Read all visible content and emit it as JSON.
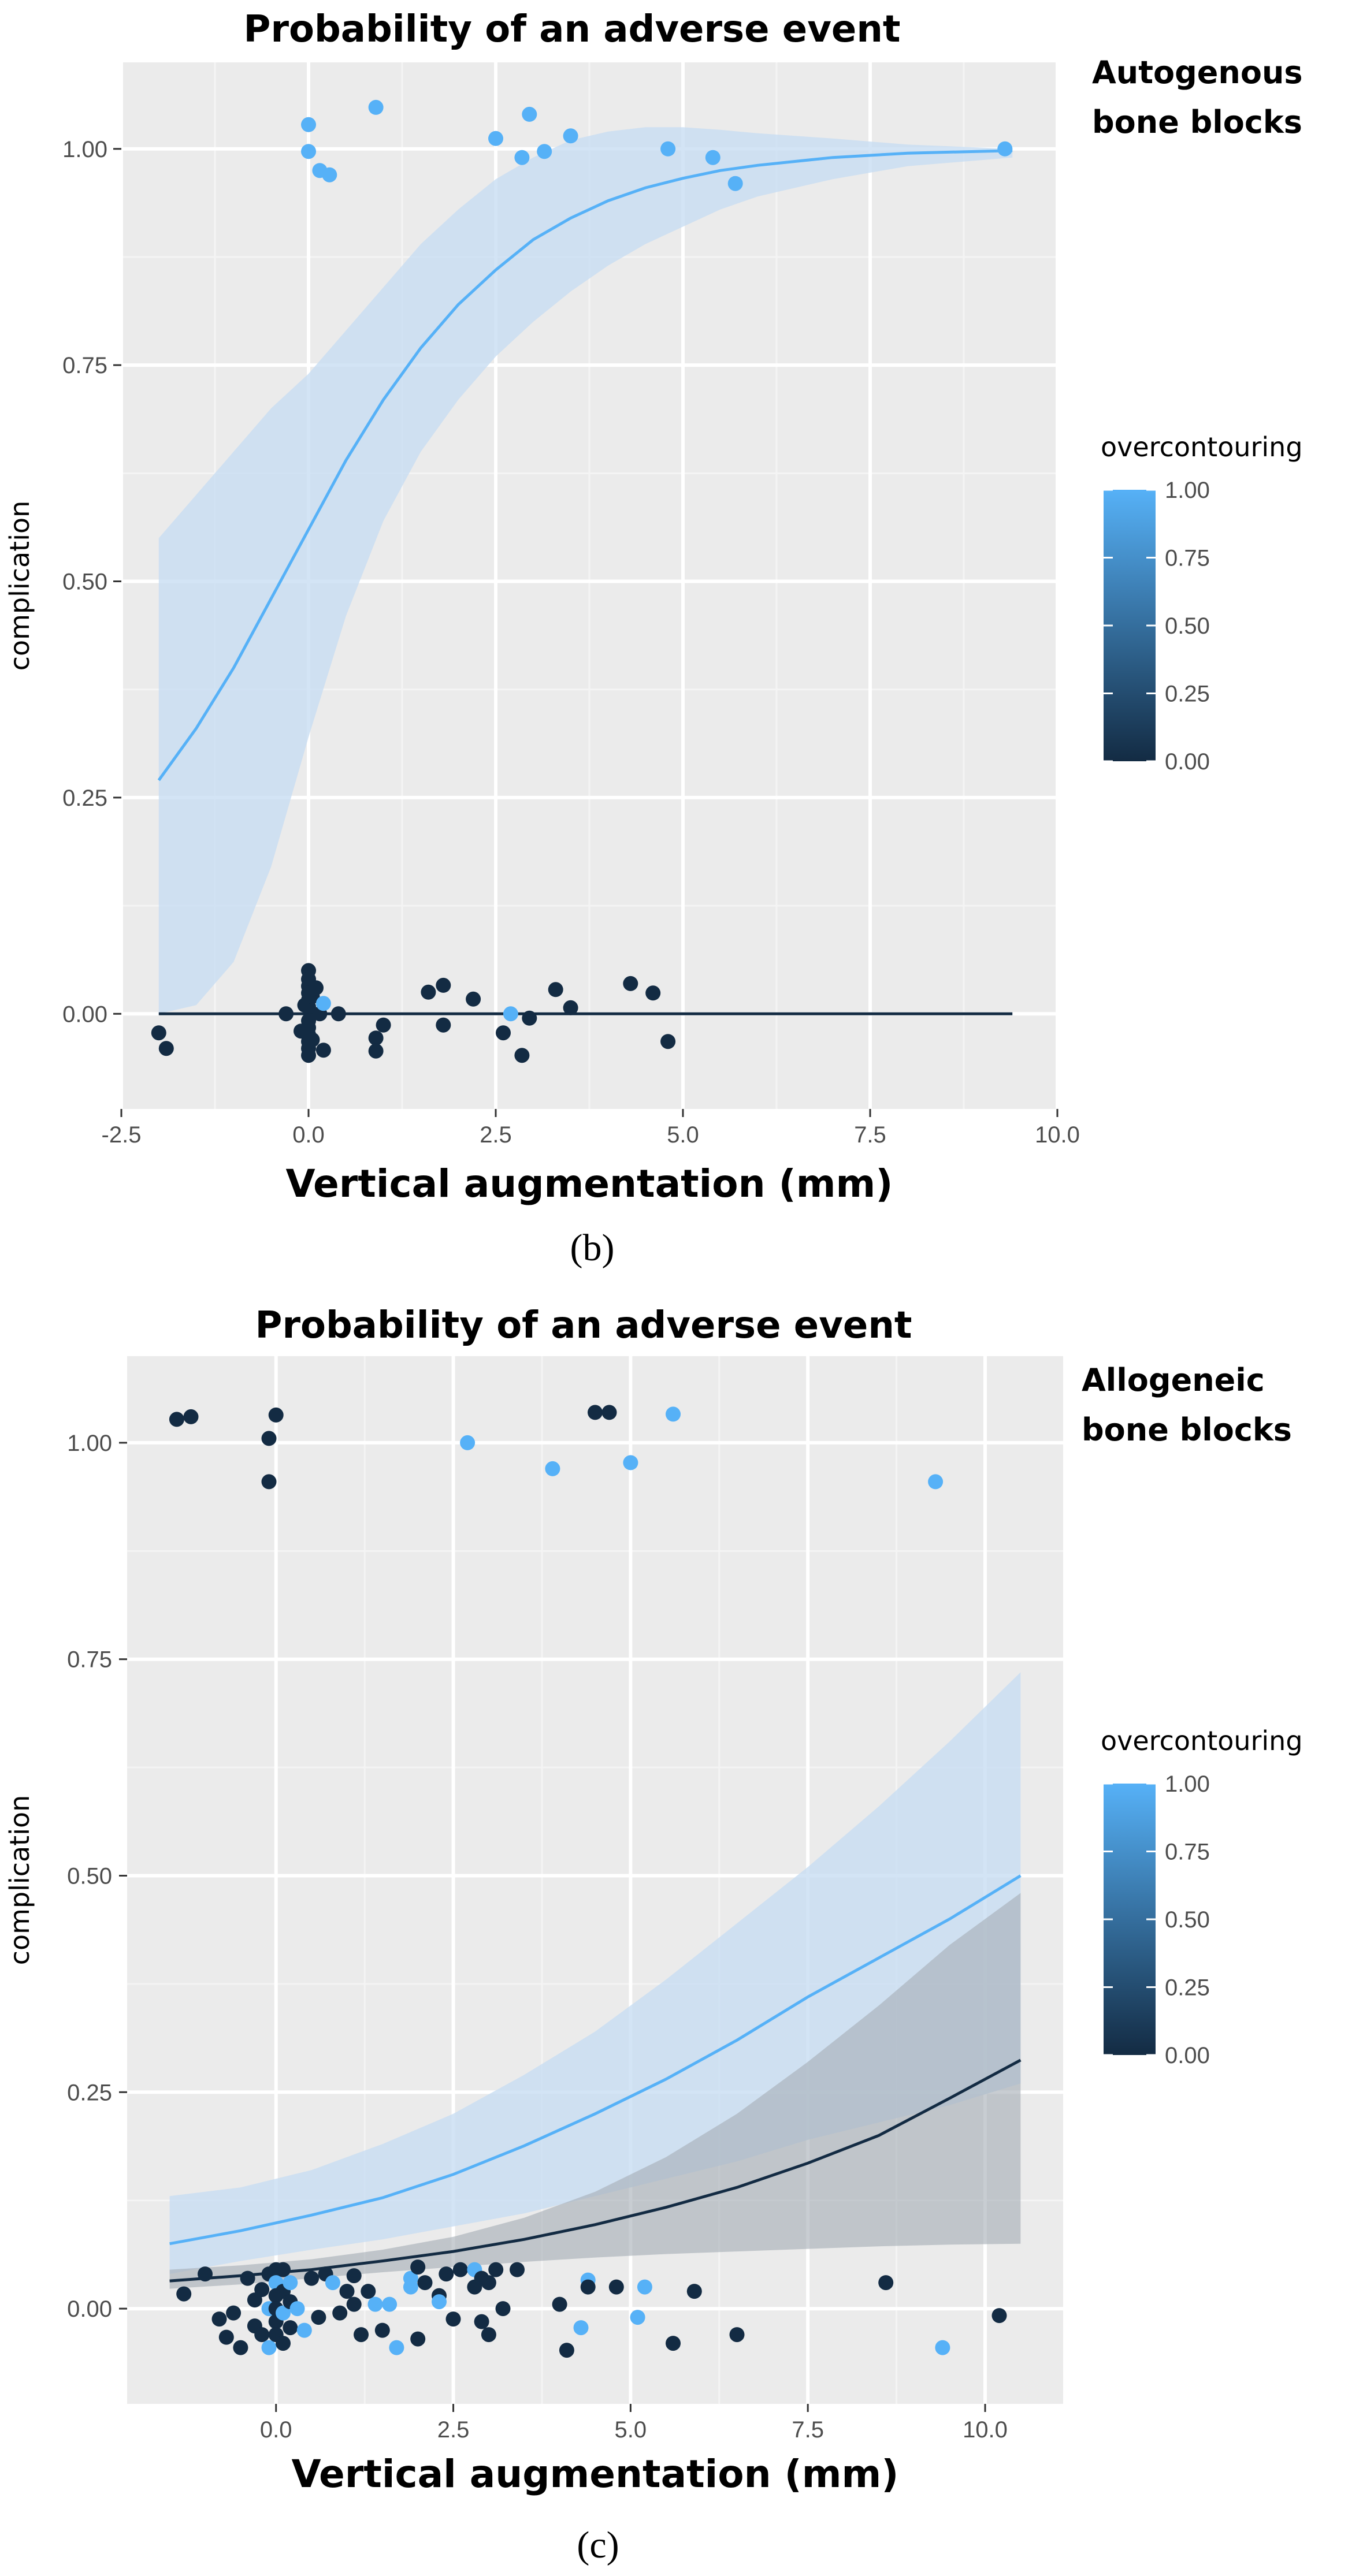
{
  "colors": {
    "panel_bg": "#ebebeb",
    "grid_major": "#ffffff",
    "grid_minor": "#f4f4f4",
    "light_blue": "#56b1f7",
    "dark_navy": "#132b43",
    "ribbon_blue": "#c6dcf2",
    "ribbon_dark": "#a7aeb6",
    "tick_text": "#4d4d4d"
  },
  "chart_data": [
    {
      "panel_label": "(b)",
      "panel_letter": "b",
      "type": "scatter",
      "title": "Probability of an adverse event",
      "xlabel": "Vertical augmentation (mm)",
      "ylabel": "complication",
      "annotation": [
        "Autogenous",
        "bone blocks"
      ],
      "xlim": [
        -2.5,
        10.0
      ],
      "ylim": [
        -0.11,
        1.1
      ],
      "xticks": [
        -2.5,
        0.0,
        2.5,
        5.0,
        7.5,
        10.0
      ],
      "xtick_labels": [
        "-2.5",
        "0.0",
        "2.5",
        "5.0",
        "7.5",
        "10.0"
      ],
      "yticks": [
        0.0,
        0.25,
        0.5,
        0.75,
        1.0
      ],
      "ytick_labels": [
        "0.00",
        "0.25",
        "0.50",
        "0.75",
        "1.00"
      ],
      "legend": {
        "title": "overcontouring",
        "position": "right",
        "labels": [
          "1.00",
          "0.75",
          "0.50",
          "0.25",
          "0.00"
        ],
        "range": [
          0,
          1
        ]
      },
      "fits": [
        {
          "name": "overcontouring = 1",
          "color_key": "light_blue",
          "ribbon_key": "ribbon_blue",
          "x": [
            -2.0,
            -1.5,
            -1.0,
            -0.5,
            0.0,
            0.5,
            1.0,
            1.5,
            2.0,
            2.5,
            3.0,
            3.5,
            4.0,
            4.5,
            5.0,
            5.5,
            6.0,
            7.0,
            8.0,
            9.4
          ],
          "y": [
            0.27,
            0.33,
            0.4,
            0.48,
            0.56,
            0.64,
            0.71,
            0.77,
            0.82,
            0.86,
            0.895,
            0.92,
            0.94,
            0.955,
            0.966,
            0.975,
            0.981,
            0.99,
            0.995,
            0.998
          ],
          "lower": [
            0.0,
            0.01,
            0.06,
            0.17,
            0.32,
            0.46,
            0.57,
            0.65,
            0.71,
            0.76,
            0.8,
            0.835,
            0.865,
            0.89,
            0.91,
            0.93,
            0.945,
            0.965,
            0.98,
            0.99
          ],
          "upper": [
            0.55,
            0.6,
            0.65,
            0.7,
            0.74,
            0.79,
            0.84,
            0.89,
            0.93,
            0.965,
            0.99,
            1.01,
            1.02,
            1.025,
            1.025,
            1.022,
            1.018,
            1.012,
            1.005,
            1.0
          ]
        },
        {
          "name": "overcontouring = 0",
          "color_key": "dark_navy",
          "ribbon_key": "",
          "x": [
            -2.0,
            9.4
          ],
          "y": [
            0.0,
            0.0
          ],
          "lower": [],
          "upper": []
        }
      ],
      "points": [
        {
          "x": 0.0,
          "y": 1.028,
          "c": 1
        },
        {
          "x": 0.0,
          "y": 0.997,
          "c": 1
        },
        {
          "x": 0.15,
          "y": 0.975,
          "c": 1
        },
        {
          "x": 0.28,
          "y": 0.97,
          "c": 1
        },
        {
          "x": 0.9,
          "y": 1.048,
          "c": 1
        },
        {
          "x": 2.5,
          "y": 1.012,
          "c": 1
        },
        {
          "x": 2.85,
          "y": 0.99,
          "c": 1
        },
        {
          "x": 2.95,
          "y": 1.04,
          "c": 1
        },
        {
          "x": 3.15,
          "y": 0.997,
          "c": 1
        },
        {
          "x": 3.5,
          "y": 1.015,
          "c": 1
        },
        {
          "x": 4.8,
          "y": 1.0,
          "c": 1
        },
        {
          "x": 5.4,
          "y": 0.99,
          "c": 1
        },
        {
          "x": 5.7,
          "y": 0.96,
          "c": 1
        },
        {
          "x": 9.3,
          "y": 1.0,
          "c": 1
        },
        {
          "x": -2.0,
          "y": -0.022,
          "c": 0
        },
        {
          "x": -1.9,
          "y": -0.04,
          "c": 0
        },
        {
          "x": -0.3,
          "y": 0.0,
          "c": 0
        },
        {
          "x": -0.1,
          "y": -0.02,
          "c": 0
        },
        {
          "x": -0.05,
          "y": 0.01,
          "c": 0
        },
        {
          "x": 0.0,
          "y": 0.05,
          "c": 0
        },
        {
          "x": 0.0,
          "y": 0.04,
          "c": 0
        },
        {
          "x": 0.0,
          "y": 0.032,
          "c": 0
        },
        {
          "x": 0.0,
          "y": 0.024,
          "c": 0
        },
        {
          "x": 0.0,
          "y": 0.016,
          "c": 0
        },
        {
          "x": 0.0,
          "y": 0.008,
          "c": 0
        },
        {
          "x": 0.0,
          "y": -0.008,
          "c": 0
        },
        {
          "x": 0.0,
          "y": -0.016,
          "c": 0
        },
        {
          "x": 0.0,
          "y": -0.024,
          "c": 0
        },
        {
          "x": 0.0,
          "y": -0.032,
          "c": 0
        },
        {
          "x": 0.0,
          "y": -0.04,
          "c": 0
        },
        {
          "x": 0.0,
          "y": -0.048,
          "c": 0
        },
        {
          "x": 0.05,
          "y": 0.02,
          "c": 0
        },
        {
          "x": 0.05,
          "y": -0.03,
          "c": 0
        },
        {
          "x": 0.1,
          "y": 0.03,
          "c": 0
        },
        {
          "x": 0.15,
          "y": 0.0,
          "c": 0
        },
        {
          "x": 0.2,
          "y": 0.012,
          "c": 1
        },
        {
          "x": 0.2,
          "y": -0.042,
          "c": 0
        },
        {
          "x": 0.4,
          "y": 0.0,
          "c": 0
        },
        {
          "x": 0.9,
          "y": -0.028,
          "c": 0
        },
        {
          "x": 0.9,
          "y": -0.043,
          "c": 0
        },
        {
          "x": 1.0,
          "y": -0.013,
          "c": 0
        },
        {
          "x": 1.6,
          "y": 0.025,
          "c": 0
        },
        {
          "x": 1.8,
          "y": 0.033,
          "c": 0
        },
        {
          "x": 1.8,
          "y": -0.013,
          "c": 0
        },
        {
          "x": 2.2,
          "y": 0.017,
          "c": 0
        },
        {
          "x": 2.6,
          "y": -0.022,
          "c": 0
        },
        {
          "x": 2.7,
          "y": 0.0,
          "c": 1
        },
        {
          "x": 2.85,
          "y": -0.048,
          "c": 0
        },
        {
          "x": 2.95,
          "y": -0.005,
          "c": 0
        },
        {
          "x": 3.3,
          "y": 0.028,
          "c": 0
        },
        {
          "x": 3.5,
          "y": 0.007,
          "c": 0
        },
        {
          "x": 4.3,
          "y": 0.035,
          "c": 0
        },
        {
          "x": 4.6,
          "y": 0.024,
          "c": 0
        },
        {
          "x": 4.8,
          "y": -0.032,
          "c": 0
        }
      ]
    },
    {
      "panel_label": "(c)",
      "panel_letter": "c",
      "type": "scatter",
      "title": "Probability of an adverse event",
      "xlabel": "Vertical augmentation (mm)",
      "ylabel": "complication",
      "annotation": [
        "Allogeneic",
        "bone blocks"
      ],
      "xlim": [
        -2.1,
        11.1
      ],
      "ylim": [
        -0.11,
        1.1
      ],
      "xticks": [
        0.0,
        2.5,
        5.0,
        7.5,
        10.0
      ],
      "xtick_labels": [
        "0.0",
        "2.5",
        "5.0",
        "7.5",
        "10.0"
      ],
      "yticks": [
        0.0,
        0.25,
        0.5,
        0.75,
        1.0
      ],
      "ytick_labels": [
        "0.00",
        "0.25",
        "0.50",
        "0.75",
        "1.00"
      ],
      "legend": {
        "title": "overcontouring",
        "position": "right",
        "labels": [
          "1.00",
          "0.75",
          "0.50",
          "0.25",
          "0.00"
        ],
        "range": [
          0,
          1
        ]
      },
      "fits": [
        {
          "name": "overcontouring = 1",
          "color_key": "light_blue",
          "ribbon_key": "ribbon_blue",
          "x": [
            -1.5,
            -0.5,
            0.5,
            1.5,
            2.5,
            3.5,
            4.5,
            5.5,
            6.5,
            7.5,
            8.5,
            9.5,
            10.5
          ],
          "y": [
            0.075,
            0.09,
            0.108,
            0.128,
            0.155,
            0.188,
            0.225,
            0.265,
            0.31,
            0.36,
            0.405,
            0.45,
            0.5
          ],
          "lower": [
            0.04,
            0.055,
            0.068,
            0.08,
            0.095,
            0.11,
            0.13,
            0.15,
            0.17,
            0.195,
            0.215,
            0.235,
            0.26
          ],
          "upper": [
            0.13,
            0.14,
            0.16,
            0.19,
            0.225,
            0.27,
            0.32,
            0.38,
            0.445,
            0.51,
            0.58,
            0.655,
            0.735
          ]
        },
        {
          "name": "overcontouring = 0",
          "color_key": "dark_navy",
          "ribbon_key": "ribbon_dark",
          "x": [
            -1.5,
            -0.5,
            0.5,
            1.5,
            2.5,
            3.5,
            4.5,
            5.5,
            6.5,
            7.5,
            8.5,
            9.5,
            10.5
          ],
          "y": [
            0.032,
            0.038,
            0.045,
            0.055,
            0.066,
            0.08,
            0.097,
            0.117,
            0.14,
            0.168,
            0.2,
            0.243,
            0.287
          ],
          "lower": [
            0.023,
            0.028,
            0.035,
            0.042,
            0.048,
            0.054,
            0.059,
            0.063,
            0.066,
            0.069,
            0.072,
            0.074,
            0.075
          ],
          "upper": [
            0.045,
            0.05,
            0.057,
            0.068,
            0.083,
            0.105,
            0.135,
            0.175,
            0.225,
            0.285,
            0.35,
            0.42,
            0.48
          ]
        }
      ],
      "points": [
        {
          "x": -1.4,
          "y": 1.027,
          "c": 0
        },
        {
          "x": -1.2,
          "y": 1.03,
          "c": 0
        },
        {
          "x": -0.1,
          "y": 1.005,
          "c": 0
        },
        {
          "x": -0.1,
          "y": 0.955,
          "c": 0
        },
        {
          "x": 0.0,
          "y": 1.032,
          "c": 0
        },
        {
          "x": 2.7,
          "y": 1.0,
          "c": 1
        },
        {
          "x": 3.9,
          "y": 0.97,
          "c": 1
        },
        {
          "x": 4.5,
          "y": 1.035,
          "c": 0
        },
        {
          "x": 4.7,
          "y": 1.035,
          "c": 0
        },
        {
          "x": 5.0,
          "y": 0.977,
          "c": 1
        },
        {
          "x": 5.6,
          "y": 1.033,
          "c": 1
        },
        {
          "x": 9.3,
          "y": 0.955,
          "c": 1
        },
        {
          "x": -1.3,
          "y": 0.017,
          "c": 0
        },
        {
          "x": -1.0,
          "y": 0.04,
          "c": 0
        },
        {
          "x": -0.8,
          "y": -0.012,
          "c": 0
        },
        {
          "x": -0.7,
          "y": -0.033,
          "c": 0
        },
        {
          "x": -0.6,
          "y": -0.005,
          "c": 0
        },
        {
          "x": -0.5,
          "y": -0.045,
          "c": 0
        },
        {
          "x": -0.4,
          "y": 0.035,
          "c": 0
        },
        {
          "x": -0.3,
          "y": 0.01,
          "c": 0
        },
        {
          "x": -0.3,
          "y": -0.02,
          "c": 0
        },
        {
          "x": -0.2,
          "y": 0.022,
          "c": 0
        },
        {
          "x": -0.2,
          "y": -0.03,
          "c": 0
        },
        {
          "x": -0.1,
          "y": 0.04,
          "c": 0
        },
        {
          "x": -0.1,
          "y": 0.0,
          "c": 1
        },
        {
          "x": -0.1,
          "y": -0.045,
          "c": 1
        },
        {
          "x": 0.0,
          "y": 0.045,
          "c": 0
        },
        {
          "x": 0.0,
          "y": 0.03,
          "c": 1
        },
        {
          "x": 0.0,
          "y": 0.015,
          "c": 0
        },
        {
          "x": 0.0,
          "y": 0.0,
          "c": 0
        },
        {
          "x": 0.0,
          "y": -0.015,
          "c": 0
        },
        {
          "x": 0.0,
          "y": -0.03,
          "c": 0
        },
        {
          "x": 0.1,
          "y": 0.045,
          "c": 0
        },
        {
          "x": 0.1,
          "y": 0.02,
          "c": 0
        },
        {
          "x": 0.1,
          "y": -0.005,
          "c": 1
        },
        {
          "x": 0.1,
          "y": -0.04,
          "c": 0
        },
        {
          "x": 0.2,
          "y": 0.03,
          "c": 1
        },
        {
          "x": 0.2,
          "y": 0.008,
          "c": 0
        },
        {
          "x": 0.2,
          "y": -0.022,
          "c": 0
        },
        {
          "x": 0.3,
          "y": 0.0,
          "c": 1
        },
        {
          "x": 0.4,
          "y": -0.025,
          "c": 1
        },
        {
          "x": 0.5,
          "y": 0.035,
          "c": 0
        },
        {
          "x": 0.6,
          "y": -0.01,
          "c": 0
        },
        {
          "x": 0.7,
          "y": 0.04,
          "c": 0
        },
        {
          "x": 0.8,
          "y": 0.03,
          "c": 1
        },
        {
          "x": 0.9,
          "y": -0.005,
          "c": 0
        },
        {
          "x": 1.0,
          "y": 0.02,
          "c": 0
        },
        {
          "x": 1.1,
          "y": 0.038,
          "c": 0
        },
        {
          "x": 1.1,
          "y": 0.005,
          "c": 0
        },
        {
          "x": 1.2,
          "y": -0.03,
          "c": 0
        },
        {
          "x": 1.3,
          "y": 0.02,
          "c": 0
        },
        {
          "x": 1.4,
          "y": 0.005,
          "c": 1
        },
        {
          "x": 1.5,
          "y": -0.025,
          "c": 0
        },
        {
          "x": 1.6,
          "y": 0.005,
          "c": 1
        },
        {
          "x": 1.7,
          "y": -0.045,
          "c": 1
        },
        {
          "x": 1.9,
          "y": 0.035,
          "c": 1
        },
        {
          "x": 1.9,
          "y": 0.025,
          "c": 1
        },
        {
          "x": 2.0,
          "y": 0.048,
          "c": 0
        },
        {
          "x": 2.0,
          "y": -0.035,
          "c": 0
        },
        {
          "x": 2.1,
          "y": 0.03,
          "c": 0
        },
        {
          "x": 2.3,
          "y": 0.015,
          "c": 0
        },
        {
          "x": 2.3,
          "y": 0.008,
          "c": 1
        },
        {
          "x": 2.4,
          "y": 0.04,
          "c": 0
        },
        {
          "x": 2.5,
          "y": -0.012,
          "c": 0
        },
        {
          "x": 2.6,
          "y": 0.045,
          "c": 0
        },
        {
          "x": 2.8,
          "y": 0.025,
          "c": 0
        },
        {
          "x": 2.8,
          "y": 0.045,
          "c": 1
        },
        {
          "x": 2.9,
          "y": 0.035,
          "c": 0
        },
        {
          "x": 2.9,
          "y": -0.015,
          "c": 0
        },
        {
          "x": 3.0,
          "y": -0.03,
          "c": 0
        },
        {
          "x": 3.0,
          "y": 0.03,
          "c": 0
        },
        {
          "x": 3.1,
          "y": 0.045,
          "c": 0
        },
        {
          "x": 3.2,
          "y": 0.0,
          "c": 0
        },
        {
          "x": 3.4,
          "y": 0.045,
          "c": 0
        },
        {
          "x": 4.0,
          "y": 0.005,
          "c": 0
        },
        {
          "x": 4.1,
          "y": -0.048,
          "c": 0
        },
        {
          "x": 4.3,
          "y": -0.022,
          "c": 1
        },
        {
          "x": 4.4,
          "y": 0.033,
          "c": 1
        },
        {
          "x": 4.4,
          "y": 0.025,
          "c": 0
        },
        {
          "x": 4.8,
          "y": 0.025,
          "c": 0
        },
        {
          "x": 5.1,
          "y": -0.01,
          "c": 1
        },
        {
          "x": 5.2,
          "y": 0.025,
          "c": 1
        },
        {
          "x": 5.6,
          "y": -0.04,
          "c": 0
        },
        {
          "x": 5.9,
          "y": 0.02,
          "c": 0
        },
        {
          "x": 6.5,
          "y": -0.03,
          "c": 0
        },
        {
          "x": 8.6,
          "y": 0.03,
          "c": 0
        },
        {
          "x": 9.4,
          "y": -0.045,
          "c": 1
        },
        {
          "x": 10.2,
          "y": -0.008,
          "c": 0
        }
      ]
    }
  ]
}
